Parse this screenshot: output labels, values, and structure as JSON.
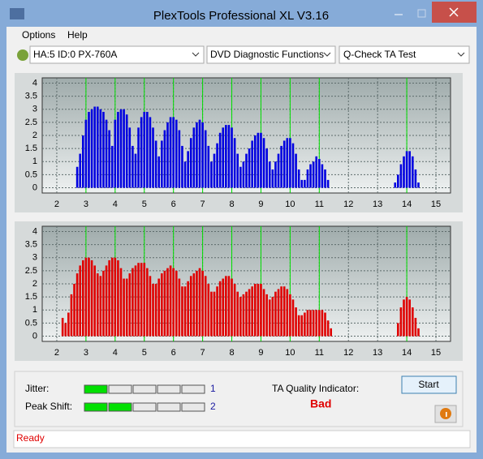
{
  "window": {
    "title": "PlexTools Professional XL V3.16"
  },
  "menu": [
    "Options",
    "Help"
  ],
  "toolbar": {
    "drive": "HA:5 ID:0  PX-760A",
    "function": "DVD Diagnostic Functions",
    "test": "Q-Check TA Test"
  },
  "charts": [
    {
      "type": "bar",
      "color": "#0000e0",
      "marker_color": "#00e000",
      "xlim": [
        1.5,
        15.5
      ],
      "ylim": [
        -0.2,
        4.2
      ],
      "xticks": [
        2,
        3,
        4,
        5,
        6,
        7,
        8,
        9,
        10,
        11,
        12,
        13,
        14,
        15
      ],
      "yticks": [
        0,
        0.5,
        1,
        1.5,
        2,
        2.5,
        3,
        3.5,
        4
      ],
      "markers": [
        3,
        4,
        5,
        6,
        7,
        8,
        9,
        10,
        11,
        14
      ],
      "x": [
        2.7,
        2.8,
        2.9,
        3.0,
        3.1,
        3.2,
        3.3,
        3.4,
        3.5,
        3.6,
        3.7,
        3.8,
        3.9,
        4.0,
        4.1,
        4.2,
        4.3,
        4.4,
        4.5,
        4.6,
        4.7,
        4.8,
        4.9,
        5.0,
        5.1,
        5.2,
        5.3,
        5.4,
        5.5,
        5.6,
        5.7,
        5.8,
        5.9,
        6.0,
        6.1,
        6.2,
        6.3,
        6.4,
        6.5,
        6.6,
        6.7,
        6.8,
        6.9,
        7.0,
        7.1,
        7.2,
        7.3,
        7.4,
        7.5,
        7.6,
        7.7,
        7.8,
        7.9,
        8.0,
        8.1,
        8.2,
        8.3,
        8.4,
        8.5,
        8.6,
        8.7,
        8.8,
        8.9,
        9.0,
        9.1,
        9.2,
        9.3,
        9.4,
        9.5,
        9.6,
        9.7,
        9.8,
        9.9,
        10.0,
        10.1,
        10.2,
        10.3,
        10.4,
        10.5,
        10.6,
        10.7,
        10.8,
        10.9,
        11.0,
        11.1,
        11.2,
        11.3,
        13.6,
        13.7,
        13.8,
        13.9,
        14.0,
        14.1,
        14.2,
        14.3,
        14.4
      ],
      "values": [
        0.8,
        1.3,
        2.0,
        2.6,
        2.9,
        3.0,
        3.1,
        3.1,
        3.0,
        2.9,
        2.6,
        2.2,
        1.6,
        2.6,
        2.9,
        3.0,
        3.0,
        2.8,
        2.3,
        1.6,
        1.3,
        2.3,
        2.7,
        2.9,
        2.9,
        2.7,
        2.3,
        1.8,
        1.2,
        1.8,
        2.2,
        2.5,
        2.7,
        2.7,
        2.6,
        2.2,
        1.6,
        1.0,
        1.4,
        1.9,
        2.3,
        2.5,
        2.6,
        2.5,
        2.2,
        1.6,
        1.0,
        1.3,
        1.7,
        2.1,
        2.3,
        2.4,
        2.4,
        2.3,
        1.9,
        1.3,
        0.8,
        1.0,
        1.3,
        1.5,
        1.8,
        2.0,
        2.1,
        2.1,
        1.9,
        1.5,
        1.0,
        0.7,
        1.0,
        1.3,
        1.6,
        1.8,
        1.9,
        1.9,
        1.7,
        1.3,
        0.7,
        0.3,
        0.3,
        0.7,
        0.9,
        1.0,
        1.2,
        1.1,
        0.9,
        0.7,
        0.3,
        0.2,
        0.5,
        0.9,
        1.2,
        1.4,
        1.4,
        1.2,
        0.7,
        0.2
      ]
    },
    {
      "type": "bar",
      "color": "#e00000",
      "marker_color": "#00e000",
      "xlim": [
        1.5,
        15.5
      ],
      "ylim": [
        -0.2,
        4.2
      ],
      "xticks": [
        2,
        3,
        4,
        5,
        6,
        7,
        8,
        9,
        10,
        11,
        12,
        13,
        14,
        15
      ],
      "yticks": [
        0,
        0.5,
        1,
        1.5,
        2,
        2.5,
        3,
        3.5,
        4
      ],
      "markers": [
        3,
        4,
        5,
        6,
        7,
        8,
        9,
        10,
        11,
        14
      ],
      "x": [
        2.2,
        2.3,
        2.4,
        2.5,
        2.6,
        2.7,
        2.8,
        2.9,
        3.0,
        3.1,
        3.2,
        3.3,
        3.4,
        3.5,
        3.6,
        3.7,
        3.8,
        3.9,
        4.0,
        4.1,
        4.2,
        4.3,
        4.4,
        4.5,
        4.6,
        4.7,
        4.8,
        4.9,
        5.0,
        5.1,
        5.2,
        5.3,
        5.4,
        5.5,
        5.6,
        5.7,
        5.8,
        5.9,
        6.0,
        6.1,
        6.2,
        6.3,
        6.4,
        6.5,
        6.6,
        6.7,
        6.8,
        6.9,
        7.0,
        7.1,
        7.2,
        7.3,
        7.4,
        7.5,
        7.6,
        7.7,
        7.8,
        7.9,
        8.0,
        8.1,
        8.2,
        8.3,
        8.4,
        8.5,
        8.6,
        8.7,
        8.8,
        8.9,
        9.0,
        9.1,
        9.2,
        9.3,
        9.4,
        9.5,
        9.6,
        9.7,
        9.8,
        9.9,
        10.0,
        10.1,
        10.2,
        10.3,
        10.4,
        10.5,
        10.6,
        10.7,
        10.8,
        10.9,
        11.0,
        11.1,
        11.2,
        11.3,
        11.4,
        13.7,
        13.8,
        13.9,
        14.0,
        14.1,
        14.2,
        14.3,
        14.4
      ],
      "values": [
        0.7,
        0.5,
        0.9,
        1.6,
        2.0,
        2.4,
        2.7,
        2.9,
        3.0,
        3.0,
        2.9,
        2.7,
        2.4,
        2.3,
        2.5,
        2.7,
        2.9,
        3.0,
        3.0,
        2.9,
        2.6,
        2.2,
        2.2,
        2.4,
        2.6,
        2.7,
        2.8,
        2.8,
        2.8,
        2.6,
        2.3,
        2.0,
        2.0,
        2.2,
        2.4,
        2.5,
        2.6,
        2.7,
        2.6,
        2.5,
        2.2,
        1.9,
        1.9,
        2.1,
        2.3,
        2.4,
        2.5,
        2.6,
        2.5,
        2.3,
        2.0,
        1.7,
        1.7,
        1.9,
        2.1,
        2.2,
        2.3,
        2.3,
        2.2,
        2.0,
        1.7,
        1.5,
        1.6,
        1.7,
        1.8,
        1.9,
        2.0,
        2.0,
        2.0,
        1.8,
        1.6,
        1.4,
        1.5,
        1.7,
        1.8,
        1.9,
        1.9,
        1.8,
        1.6,
        1.4,
        1.1,
        0.8,
        0.8,
        0.9,
        1.0,
        1.0,
        1.0,
        1.0,
        1.0,
        1.0,
        0.9,
        0.6,
        0.3,
        0.5,
        1.1,
        1.4,
        1.5,
        1.4,
        1.1,
        0.7,
        0.3
      ]
    }
  ],
  "results": {
    "jitter_label": "Jitter:",
    "jitter": 1,
    "peak_shift_label": "Peak Shift:",
    "peak_shift": 2,
    "quality_label": "TA Quality Indicator:",
    "quality": "Bad",
    "start": "Start"
  },
  "status": "Ready"
}
